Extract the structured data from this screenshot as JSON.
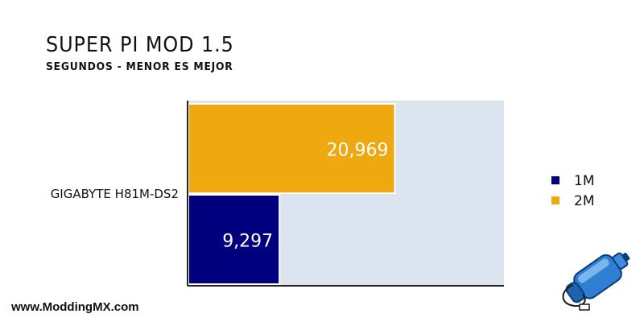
{
  "header": {
    "title": "SUPER PI MOD 1.5",
    "subtitle": "SEGUNDOS - MENOR ES MEJOR"
  },
  "footer": {
    "site": "www.ModdingMX.com"
  },
  "colors": {
    "plot_background": "#dbe4ef",
    "series_1m": "#00007f",
    "series_2m": "#f0a810",
    "bar_edge": "#ffffff"
  },
  "icons": {
    "logo": "water-bottle-logo-icon"
  },
  "chart_data": {
    "type": "bar",
    "orientation": "horizontal",
    "title": "SUPER PI MOD 1.5",
    "subtitle": "SEGUNDOS - MENOR ES MEJOR",
    "categories": [
      "GIGABYTE H81M-DS2"
    ],
    "series": [
      {
        "name": "1M",
        "values": [
          9.297
        ],
        "label": "9,297",
        "color": "#00007f"
      },
      {
        "name": "2M",
        "values": [
          20.969
        ],
        "label": "20,969",
        "color": "#f0a810"
      }
    ],
    "xlim": [
      0,
      32
    ],
    "grid": false,
    "legend": {
      "position": "right",
      "entries": [
        "1M",
        "2M"
      ]
    }
  }
}
